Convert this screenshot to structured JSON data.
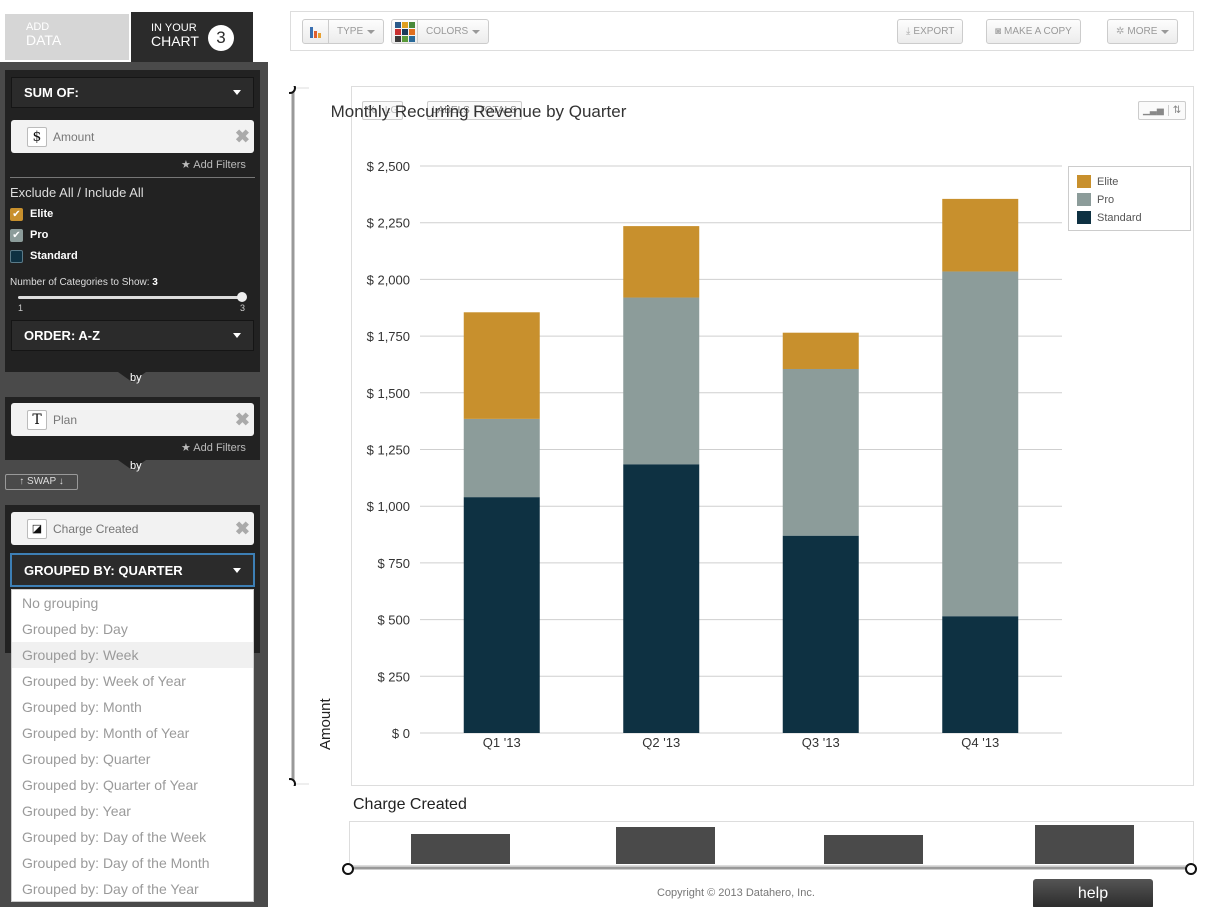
{
  "tabs": {
    "add": {
      "line1": "ADD",
      "line2": "DATA"
    },
    "chart": {
      "line1": "IN YOUR",
      "line2": "CHART",
      "count": "3"
    }
  },
  "sum_of": {
    "label": "SUM OF:"
  },
  "amount_field": {
    "icon": "$",
    "name": "Amount",
    "remove": "✖",
    "add_filters": "★ Add Filters"
  },
  "exclude_include": "Exclude All / Include All",
  "categories": [
    {
      "label": "Elite",
      "checked": true,
      "color": "#c8902d"
    },
    {
      "label": "Pro",
      "checked": true,
      "color": "#8c9c9a"
    },
    {
      "label": "Standard",
      "checked": false,
      "color": "#0e3142"
    }
  ],
  "num_categories": {
    "label": "Number of Categories to Show:",
    "value": "3",
    "min": "1",
    "max": "3"
  },
  "order": {
    "label": "ORDER:  A-Z"
  },
  "by1": "by",
  "plan_field": {
    "icon": "T",
    "name": "Plan",
    "remove": "✖",
    "add_filters": "★ Add Filters"
  },
  "by2": "by",
  "swap": "↑ SWAP ↓",
  "charge_field": {
    "icon": "◪",
    "name": "Charge Created",
    "remove": "✖"
  },
  "grouped_by": {
    "label": "GROUPED BY:  QUARTER"
  },
  "grouping_menu": [
    "No grouping",
    "Grouped by:  Day",
    "Grouped by:  Week",
    "Grouped by:  Week of Year",
    "Grouped by:  Month",
    "Grouped by:  Month of Year",
    "Grouped by:  Quarter",
    "Grouped by:  Quarter of Year",
    "Grouped by:  Year",
    "Grouped by:  Day of the Week",
    "Grouped by:  Day of the Month",
    "Grouped by:  Day of the Year"
  ],
  "grouping_highlighted": "Grouped by:  Week",
  "toolbar": {
    "type_label": "TYPE",
    "colors_label": "COLORS",
    "export_label": "EXPORT",
    "copy_label": "MAKE A COPY",
    "more_label": "MORE"
  },
  "chart_controls": {
    "pct": "%",
    "lg": "LG",
    "labels": "LABELS",
    "totals": "TOTALS"
  },
  "chart_data": {
    "type": "bar",
    "stacked": true,
    "title": "Monthly Recurring Revenue by Quarter",
    "ylabel": "Amount",
    "xlabel": "Charge Created",
    "categories": [
      "Q1 '13",
      "Q2 '13",
      "Q3 '13",
      "Q4 '13"
    ],
    "ylim": [
      0,
      2500
    ],
    "yticks": [
      0,
      250,
      500,
      750,
      1000,
      1250,
      1500,
      1750,
      2000,
      2250,
      2500
    ],
    "ytick_labels": [
      "$ 0",
      "$ 250",
      "$ 500",
      "$ 750",
      "$ 1,000",
      "$ 1,250",
      "$ 1,500",
      "$ 1,750",
      "$ 2,000",
      "$ 2,250",
      "$ 2,500"
    ],
    "grid": true,
    "legend": "top-right",
    "series": [
      {
        "name": "Standard",
        "color": "#0e3142",
        "values": [
          1040,
          1185,
          870,
          515
        ]
      },
      {
        "name": "Pro",
        "color": "#8c9c9a",
        "values": [
          345,
          735,
          735,
          1520
        ]
      },
      {
        "name": "Elite",
        "color": "#c8902d",
        "values": [
          470,
          315,
          160,
          320
        ]
      }
    ],
    "legend_order": [
      "Elite",
      "Pro",
      "Standard"
    ]
  },
  "footer": {
    "copyright": "Copyright © 2013 Datahero, Inc.",
    "help": "help"
  }
}
